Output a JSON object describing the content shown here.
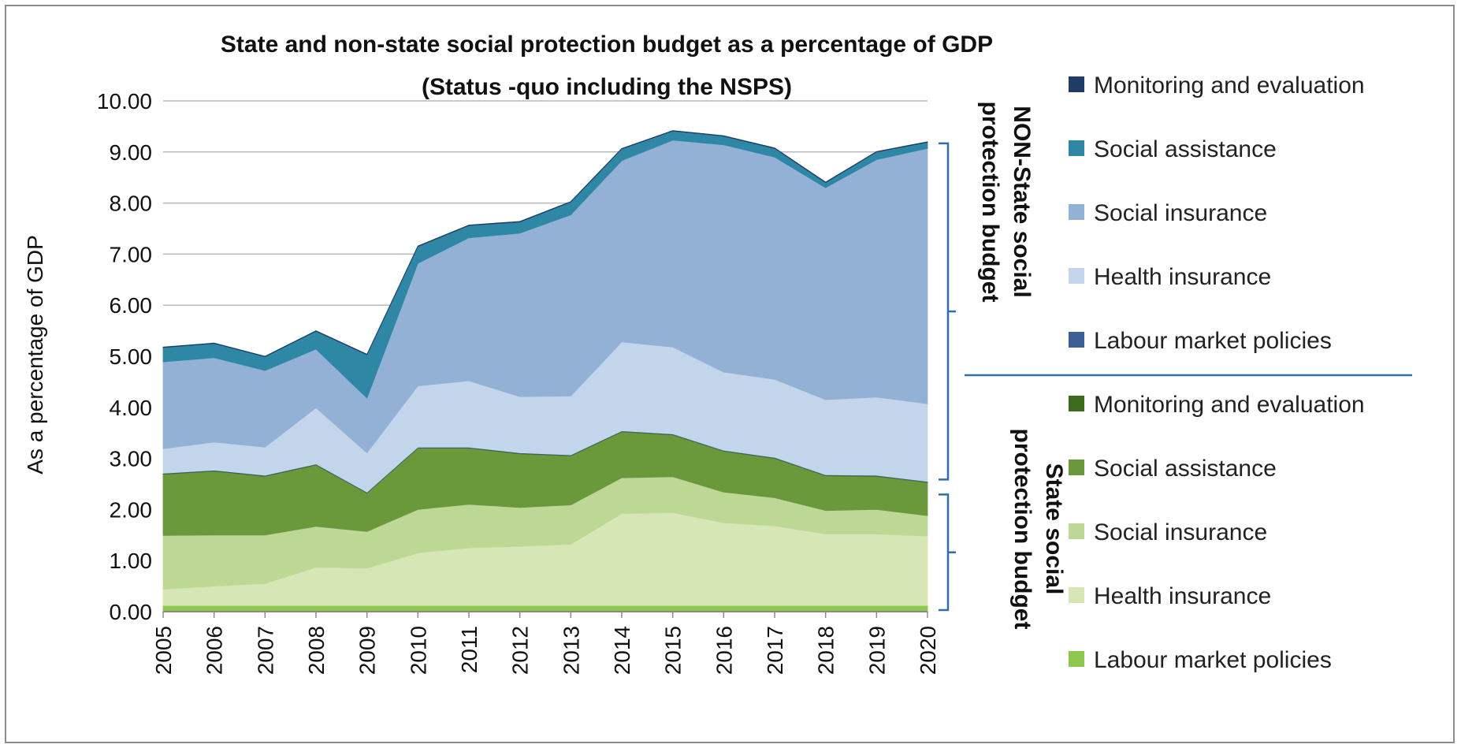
{
  "chart_data": {
    "type": "area",
    "stacked": true,
    "title": "State and non-state social protection budget as a percentage of GDP",
    "subtitle": "(Status -quo including the NSPS)",
    "xlabel": "",
    "ylabel": "As a percentage of GDP",
    "ylim": [
      0,
      10
    ],
    "ytick_step": 1,
    "ytick_decimals": 2,
    "grid": "horizontal",
    "legend_position": "right",
    "x": [
      "2005",
      "2006",
      "2007",
      "2008",
      "2009",
      "2010",
      "2011",
      "2012",
      "2013",
      "2014",
      "2015",
      "2016",
      "2017",
      "2018",
      "2019",
      "2020"
    ],
    "series": [
      {
        "name": "Labour market policies",
        "group": "state",
        "color": "#8cc84b",
        "values": [
          0.12,
          0.12,
          0.12,
          0.12,
          0.12,
          0.12,
          0.12,
          0.12,
          0.12,
          0.12,
          0.12,
          0.12,
          0.12,
          0.12,
          0.12,
          0.12
        ]
      },
      {
        "name": "Health insurance",
        "group": "state",
        "color": "#d6e6b4",
        "values": [
          0.32,
          0.38,
          0.43,
          0.75,
          0.73,
          1.03,
          1.13,
          1.16,
          1.2,
          1.8,
          1.82,
          1.62,
          1.56,
          1.4,
          1.4,
          1.36
        ]
      },
      {
        "name": "Social insurance",
        "group": "state",
        "color": "#bcd894",
        "values": [
          1.05,
          1.0,
          0.95,
          0.8,
          0.72,
          0.85,
          0.85,
          0.76,
          0.77,
          0.7,
          0.7,
          0.6,
          0.55,
          0.46,
          0.48,
          0.4
        ]
      },
      {
        "name": "Social assistance",
        "group": "state",
        "color": "#6a993c",
        "values": [
          1.2,
          1.25,
          1.15,
          1.2,
          0.75,
          1.2,
          1.1,
          1.05,
          0.96,
          0.9,
          0.82,
          0.8,
          0.77,
          0.68,
          0.65,
          0.65
        ]
      },
      {
        "name": "Monitoring and evaluation",
        "group": "state",
        "color": "#3f6b1f",
        "values": [
          0.01,
          0.01,
          0.01,
          0.01,
          0.01,
          0.01,
          0.01,
          0.01,
          0.01,
          0.01,
          0.01,
          0.01,
          0.01,
          0.01,
          0.01,
          0.01
        ]
      },
      {
        "name": "Labour market policies",
        "group": "non-state",
        "color": "#3b5f96",
        "values": [
          0.01,
          0.01,
          0.01,
          0.01,
          0.01,
          0.01,
          0.01,
          0.01,
          0.01,
          0.01,
          0.01,
          0.01,
          0.01,
          0.01,
          0.01,
          0.01
        ]
      },
      {
        "name": "Health insurance",
        "group": "non-state",
        "color": "#c3d5ea",
        "values": [
          0.48,
          0.55,
          0.55,
          1.1,
          0.77,
          1.2,
          1.3,
          1.1,
          1.15,
          1.74,
          1.7,
          1.53,
          1.53,
          1.47,
          1.53,
          1.52
        ]
      },
      {
        "name": "Social insurance",
        "group": "non-state",
        "color": "#93b1d4",
        "values": [
          1.7,
          1.65,
          1.5,
          1.15,
          1.07,
          2.4,
          2.8,
          3.2,
          3.55,
          3.55,
          4.05,
          4.45,
          4.35,
          4.15,
          4.65,
          5.0
        ]
      },
      {
        "name": "Social assistance",
        "group": "non-state",
        "color": "#2e87a4",
        "values": [
          0.28,
          0.28,
          0.27,
          0.35,
          0.85,
          0.33,
          0.24,
          0.22,
          0.25,
          0.23,
          0.18,
          0.17,
          0.17,
          0.1,
          0.15,
          0.12
        ]
      },
      {
        "name": "Monitoring and evaluation",
        "group": "non-state",
        "color": "#1e3c66",
        "values": [
          0.01,
          0.01,
          0.01,
          0.01,
          0.01,
          0.01,
          0.01,
          0.01,
          0.01,
          0.01,
          0.01,
          0.01,
          0.01,
          0.01,
          0.01,
          0.01
        ]
      }
    ],
    "legend": [
      {
        "label": "Monitoring and evaluation",
        "color": "#1e3c66"
      },
      {
        "label": "Social assistance",
        "color": "#2e87a4"
      },
      {
        "label": "Social insurance",
        "color": "#93b1d4"
      },
      {
        "label": "Health insurance",
        "color": "#c3d5ea"
      },
      {
        "label": "Labour market policies",
        "color": "#3b5f96"
      },
      {
        "label": "Monitoring and evaluation",
        "color": "#3f6b1f"
      },
      {
        "label": "Social assistance",
        "color": "#6a993c"
      },
      {
        "label": "Social insurance",
        "color": "#bcd894"
      },
      {
        "label": "Health insurance",
        "color": "#d6e6b4"
      },
      {
        "label": "Labour market policies",
        "color": "#8cc84b"
      }
    ],
    "group_labels": {
      "non_state": [
        "NON-State social",
        "protection budget"
      ],
      "state": [
        "State social",
        "protection budget"
      ]
    },
    "bracket_color": "#2e6fb3"
  }
}
